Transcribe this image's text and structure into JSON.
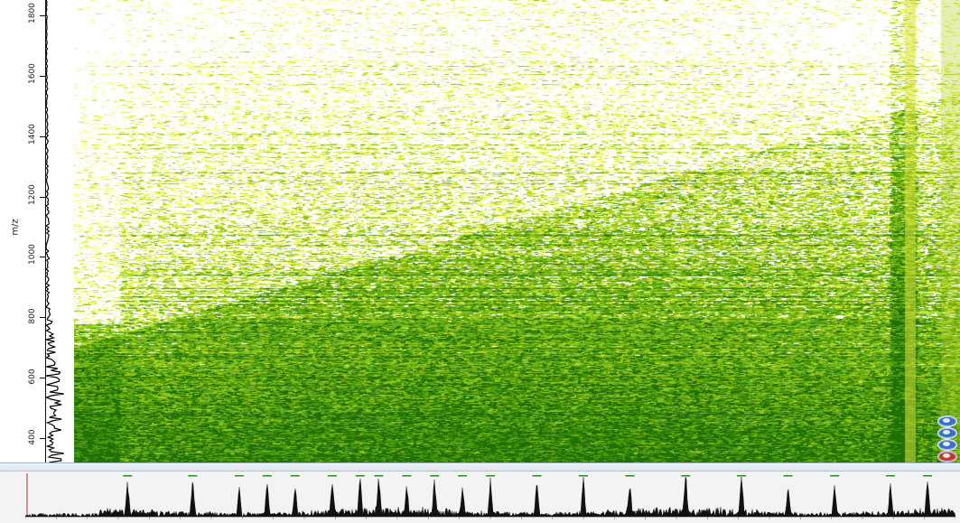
{
  "window": {
    "title": ""
  },
  "mz_axis": {
    "title": "m/z",
    "ticks": [
      {
        "value": 1800,
        "label": "1800"
      },
      {
        "value": 1600,
        "label": "1600"
      },
      {
        "value": 1400,
        "label": "1400"
      },
      {
        "value": 1200,
        "label": "1200"
      },
      {
        "value": 1000,
        "label": "1000"
      },
      {
        "value": 800,
        "label": "800"
      },
      {
        "value": 600,
        "label": "600"
      },
      {
        "value": 400,
        "label": "400"
      }
    ],
    "range": [
      320,
      1850
    ]
  },
  "heatmap": {
    "colormap": [
      "#f7fb7a",
      "#cfe33a",
      "#8fc41c",
      "#4e9a10",
      "#1f6e06"
    ],
    "background": "#ffffff"
  },
  "view_buttons": [
    {
      "name": "view-1",
      "active": false
    },
    {
      "name": "view-2",
      "active": false
    },
    {
      "name": "view-3",
      "active": false
    },
    {
      "name": "view-4",
      "active": true
    }
  ],
  "spectrum_panel": {
    "title": "",
    "ylabel": "",
    "xlabel": "",
    "accent": "#9fb2c8"
  },
  "chart_data": [
    {
      "type": "heatmap",
      "title": "",
      "ylabel": "m/z",
      "xlabel": "",
      "ylim": [
        320,
        1850
      ],
      "yticks": [
        400,
        600,
        800,
        1000,
        1200,
        1400,
        1600,
        1800
      ],
      "description_values": {
        "density_peak_mz": 450
      }
    },
    {
      "type": "line",
      "title": "",
      "xlabel": "",
      "ylabel": "",
      "peak_positions_fraction": [
        0.11,
        0.18,
        0.23,
        0.26,
        0.29,
        0.33,
        0.36,
        0.38,
        0.41,
        0.44,
        0.47,
        0.5,
        0.55,
        0.6,
        0.65,
        0.71,
        0.77,
        0.82,
        0.87,
        0.93,
        0.97
      ]
    }
  ]
}
